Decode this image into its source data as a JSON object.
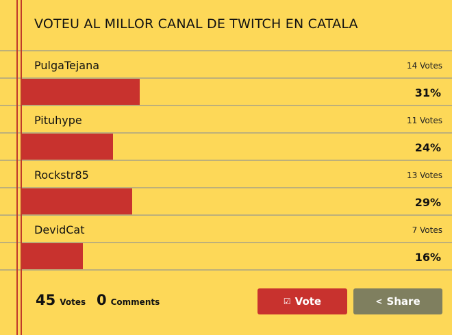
{
  "poll": {
    "title": "VOTEU AL MILLOR CANAL DE TWITCH EN CATALA",
    "options": [
      {
        "name": "PulgaTejana",
        "votes": "14 Votes",
        "percent": "31%",
        "fraction": 0.31
      },
      {
        "name": "Pituhype",
        "votes": "11 Votes",
        "percent": "24%",
        "fraction": 0.24
      },
      {
        "name": "Rockstr85",
        "votes": "13 Votes",
        "percent": "29%",
        "fraction": 0.29
      },
      {
        "name": "DevidCat",
        "votes": "7 Votes",
        "percent": "16%",
        "fraction": 0.16
      }
    ]
  },
  "footer": {
    "total_votes": "45",
    "votes_label": "Votes",
    "total_comments": "0",
    "comments_label": "Comments",
    "vote_button": "Vote",
    "vote_icon": "check-square-icon",
    "share_button": "Share",
    "share_icon": "share-icon"
  },
  "colors": {
    "background": "#fdd858",
    "bar": "#c8322e",
    "vote_button": "#c8322e",
    "share_button": "#7f7f5f",
    "margin_line": "#c0392b"
  }
}
